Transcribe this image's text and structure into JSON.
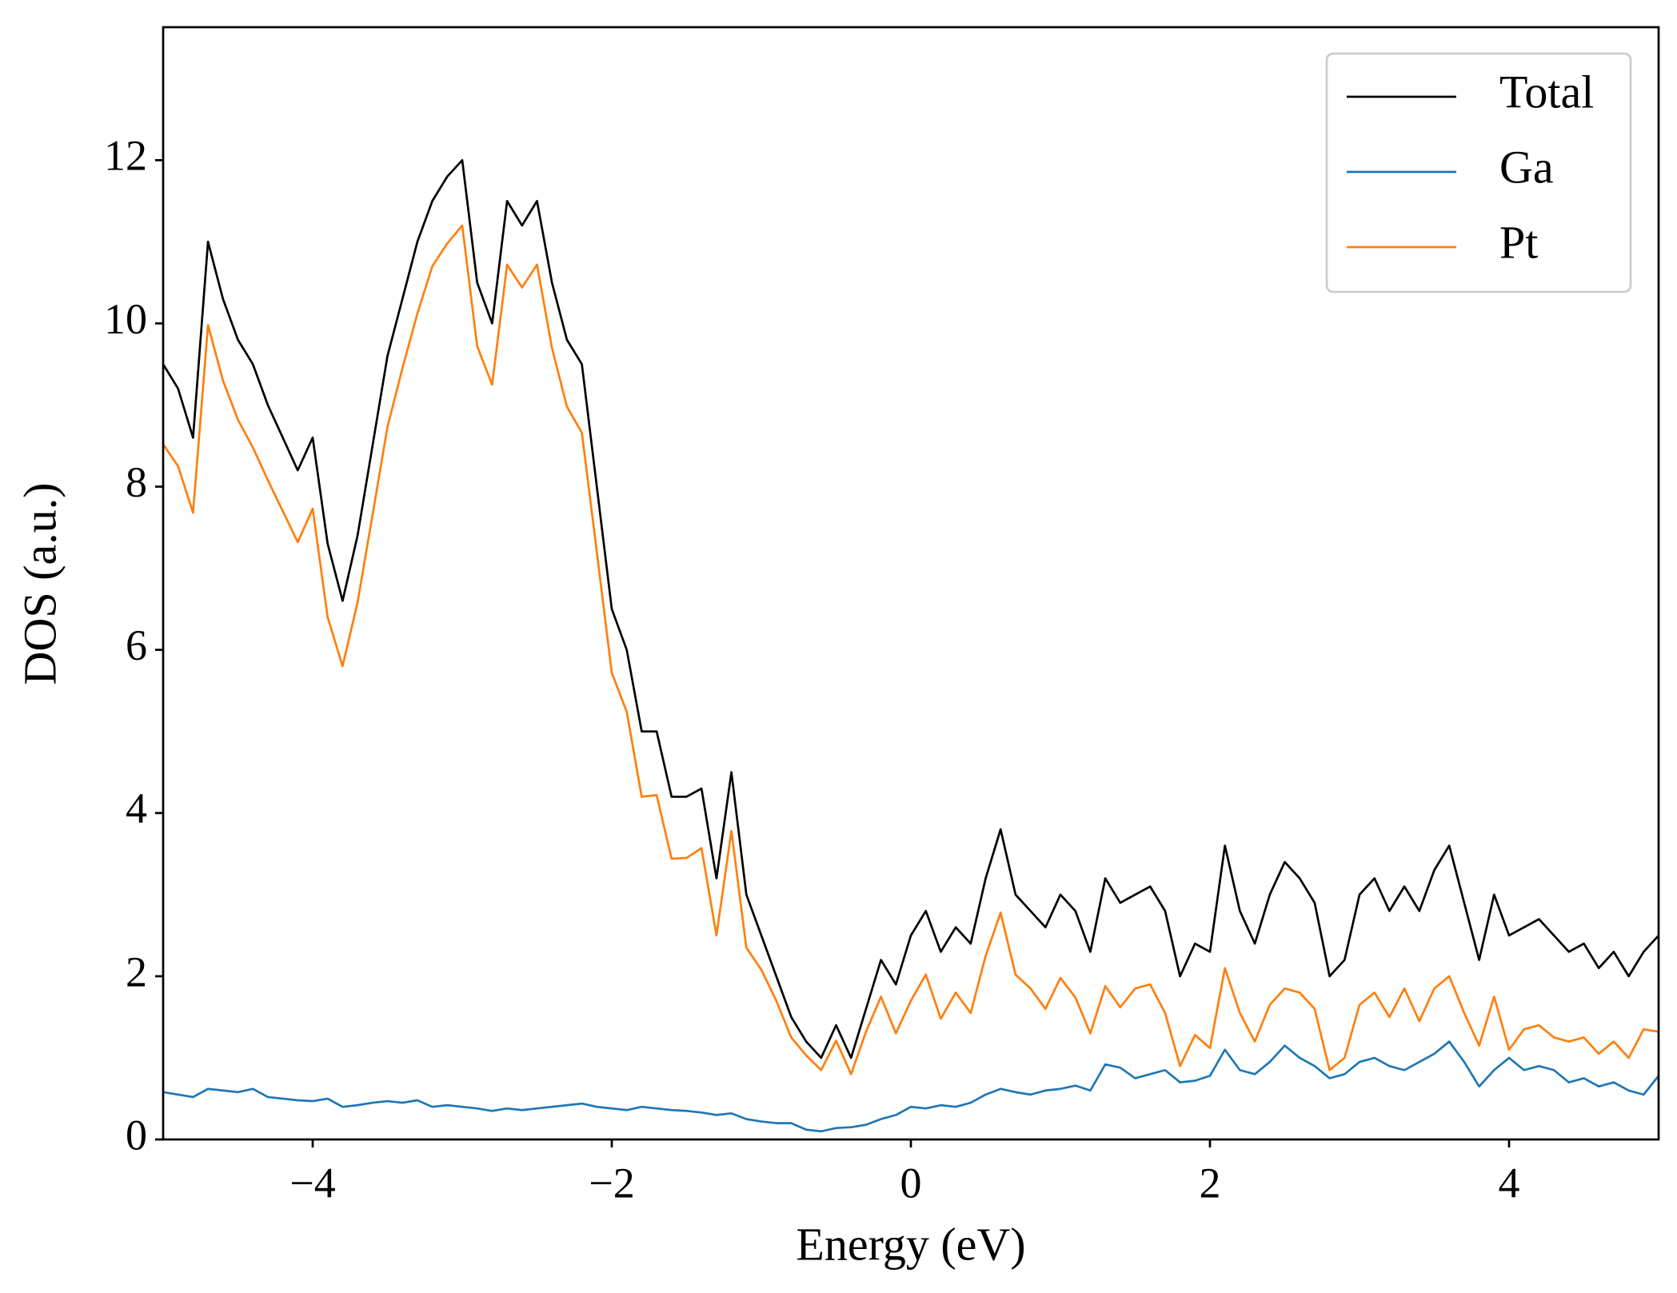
{
  "chart_data": {
    "type": "line",
    "xlabel": "Energy (eV)",
    "ylabel": "DOS (a.u.)",
    "xlim": [
      -5,
      5
    ],
    "ylim": [
      0,
      13.63
    ],
    "xticks": [
      {
        "value": -4,
        "label": "−4"
      },
      {
        "value": -2,
        "label": "−2"
      },
      0,
      2,
      4
    ],
    "yticks": [
      0,
      2,
      4,
      6,
      8,
      10,
      12
    ],
    "legend": "upper right",
    "grid": false,
    "x": [
      -5.0,
      -4.9,
      -4.8,
      -4.7,
      -4.6,
      -4.5,
      -4.4,
      -4.3,
      -4.2,
      -4.1,
      -4.0,
      -3.9,
      -3.8,
      -3.7,
      -3.6,
      -3.5,
      -3.4,
      -3.3,
      -3.2,
      -3.1,
      -3.0,
      -2.9,
      -2.8,
      -2.7,
      -2.6,
      -2.5,
      -2.4,
      -2.3,
      -2.2,
      -2.1,
      -2.0,
      -1.9,
      -1.8,
      -1.7,
      -1.6,
      -1.5,
      -1.4,
      -1.3,
      -1.2,
      -1.1,
      -1.0,
      -0.9,
      -0.8,
      -0.7,
      -0.6,
      -0.5,
      -0.4,
      -0.3,
      -0.2,
      -0.1,
      0.0,
      0.1,
      0.2,
      0.3,
      0.4,
      0.5,
      0.6,
      0.7,
      0.8,
      0.9,
      1.0,
      1.1,
      1.2,
      1.3,
      1.4,
      1.5,
      1.6,
      1.7,
      1.8,
      1.9,
      2.0,
      2.1,
      2.2,
      2.3,
      2.4,
      2.5,
      2.6,
      2.7,
      2.8,
      2.9,
      3.0,
      3.1,
      3.2,
      3.3,
      3.4,
      3.5,
      3.6,
      3.7,
      3.8,
      3.9,
      4.0,
      4.1,
      4.2,
      4.3,
      4.4,
      4.5,
      4.6,
      4.7,
      4.8,
      4.9,
      5.0
    ],
    "series": [
      {
        "name": "Total",
        "color": "#000000",
        "values": [
          9.5,
          9.2,
          8.6,
          11.0,
          10.3,
          9.8,
          9.5,
          9.0,
          8.6,
          8.2,
          8.6,
          7.3,
          6.6,
          7.4,
          8.5,
          9.6,
          10.3,
          11.0,
          11.5,
          11.8,
          12.0,
          10.5,
          10.0,
          11.5,
          11.2,
          11.5,
          10.5,
          9.8,
          9.5,
          8.0,
          6.5,
          6.0,
          5.0,
          5.0,
          4.2,
          4.2,
          4.3,
          3.2,
          4.5,
          3.0,
          2.5,
          2.0,
          1.5,
          1.2,
          1.0,
          1.4,
          1.0,
          1.6,
          2.2,
          1.9,
          2.5,
          2.8,
          2.3,
          2.6,
          2.4,
          3.2,
          3.8,
          3.0,
          2.8,
          2.6,
          3.0,
          2.8,
          2.3,
          3.2,
          2.9,
          3.0,
          3.1,
          2.8,
          2.0,
          2.4,
          2.3,
          3.6,
          2.8,
          2.4,
          3.0,
          3.4,
          3.2,
          2.9,
          2.0,
          2.2,
          3.0,
          3.2,
          2.8,
          3.1,
          2.8,
          3.3,
          3.6,
          2.9,
          2.2,
          3.0,
          2.5,
          2.6,
          2.7,
          2.5,
          2.3,
          2.4,
          2.1,
          2.3,
          2.0,
          2.3,
          2.5
        ]
      },
      {
        "name": "Ga",
        "color": "#1f77b4",
        "values": [
          0.58,
          0.55,
          0.52,
          0.62,
          0.6,
          0.58,
          0.62,
          0.52,
          0.5,
          0.48,
          0.47,
          0.5,
          0.4,
          0.42,
          0.45,
          0.47,
          0.45,
          0.48,
          0.4,
          0.42,
          0.4,
          0.38,
          0.35,
          0.38,
          0.36,
          0.38,
          0.4,
          0.42,
          0.44,
          0.4,
          0.38,
          0.36,
          0.4,
          0.38,
          0.36,
          0.35,
          0.33,
          0.3,
          0.32,
          0.25,
          0.22,
          0.2,
          0.2,
          0.12,
          0.1,
          0.14,
          0.15,
          0.18,
          0.25,
          0.3,
          0.4,
          0.38,
          0.42,
          0.4,
          0.45,
          0.55,
          0.62,
          0.58,
          0.55,
          0.6,
          0.62,
          0.66,
          0.6,
          0.92,
          0.88,
          0.75,
          0.8,
          0.85,
          0.7,
          0.72,
          0.78,
          1.1,
          0.85,
          0.8,
          0.95,
          1.15,
          1.0,
          0.9,
          0.75,
          0.8,
          0.95,
          1.0,
          0.9,
          0.85,
          0.95,
          1.05,
          1.2,
          0.95,
          0.65,
          0.85,
          1.0,
          0.85,
          0.9,
          0.85,
          0.7,
          0.75,
          0.65,
          0.7,
          0.6,
          0.55,
          0.78
        ]
      },
      {
        "name": "Pt",
        "color": "#ff7f0e",
        "values": [
          8.52,
          8.25,
          7.68,
          9.98,
          9.3,
          8.82,
          8.48,
          8.08,
          7.7,
          7.32,
          7.73,
          6.4,
          5.8,
          6.58,
          7.65,
          8.73,
          9.45,
          10.12,
          10.7,
          10.98,
          11.2,
          9.72,
          9.25,
          10.72,
          10.44,
          10.72,
          9.7,
          8.98,
          8.66,
          7.2,
          5.72,
          5.24,
          4.2,
          4.22,
          3.44,
          3.45,
          3.57,
          2.5,
          3.78,
          2.35,
          2.08,
          1.7,
          1.25,
          1.03,
          0.85,
          1.21,
          0.8,
          1.32,
          1.75,
          1.3,
          1.7,
          2.02,
          1.48,
          1.8,
          1.55,
          2.25,
          2.78,
          2.02,
          1.85,
          1.6,
          1.98,
          1.74,
          1.3,
          1.88,
          1.62,
          1.85,
          1.9,
          1.55,
          0.9,
          1.28,
          1.12,
          2.1,
          1.55,
          1.2,
          1.65,
          1.85,
          1.8,
          1.6,
          0.85,
          1.0,
          1.65,
          1.8,
          1.5,
          1.85,
          1.45,
          1.85,
          2.0,
          1.55,
          1.15,
          1.75,
          1.1,
          1.35,
          1.4,
          1.25,
          1.2,
          1.25,
          1.05,
          1.2,
          1.0,
          1.35,
          1.32
        ]
      }
    ]
  }
}
